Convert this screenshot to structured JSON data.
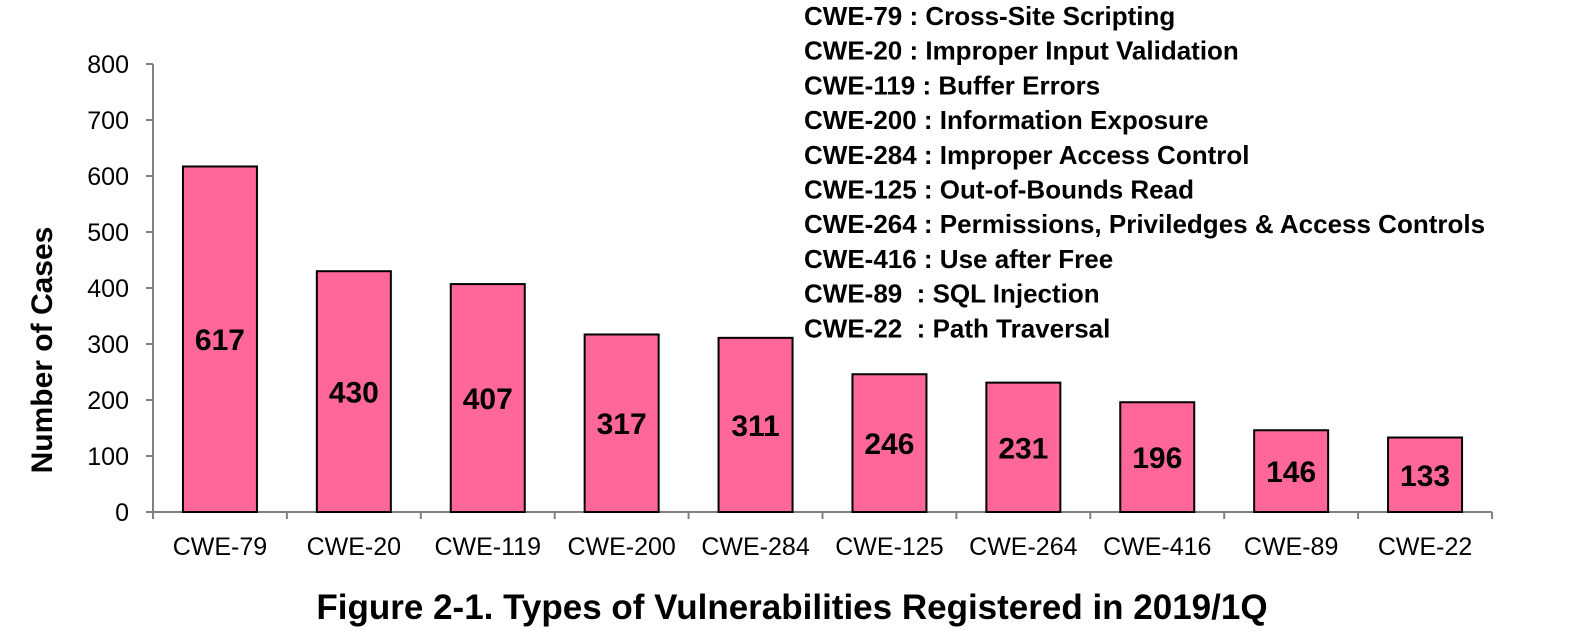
{
  "chart_data": {
    "type": "bar",
    "title": "Figure 2-1. Types of Vulnerabilities Registered in 2019/1Q",
    "xlabel": "",
    "ylabel": "Number of Cases",
    "ylim": [
      0,
      800
    ],
    "yticks": [
      0,
      100,
      200,
      300,
      400,
      500,
      600,
      700,
      800
    ],
    "categories": [
      "CWE-79",
      "CWE-20",
      "CWE-119",
      "CWE-200",
      "CWE-284",
      "CWE-125",
      "CWE-264",
      "CWE-416",
      "CWE-89",
      "CWE-22"
    ],
    "values": [
      617,
      430,
      407,
      317,
      311,
      246,
      231,
      196,
      146,
      133
    ],
    "bar_color": "#ff6699",
    "grid": false,
    "legend_text": [
      "CWE-79 : Cross-Site Scripting",
      "CWE-20 : Improper Input Validation",
      "CWE-119 : Buffer Errors",
      "CWE-200 : Information Exposure",
      "CWE-284 : Improper Access Control",
      "CWE-125 : Out-of-Bounds Read",
      "CWE-264 : Permissions, Priviledges & Access Controls",
      "CWE-416 : Use after Free",
      "CWE-89  : SQL Injection",
      "CWE-22  : Path Traversal"
    ]
  }
}
